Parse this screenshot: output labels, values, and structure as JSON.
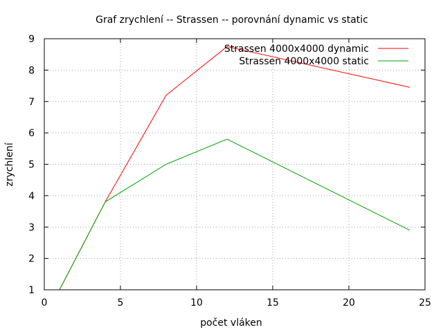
{
  "chart_data": {
    "type": "line",
    "title": "Graf zrychlení -- Strassen -- porovnání dynamic vs static",
    "xlabel": "počet vláken",
    "ylabel": "zrychlení",
    "xlim": [
      0,
      25
    ],
    "ylim": [
      1,
      9
    ],
    "xticks": [
      0,
      5,
      10,
      15,
      20,
      25
    ],
    "yticks": [
      1,
      2,
      3,
      4,
      5,
      6,
      7,
      8,
      9
    ],
    "grid": true,
    "legend_position": "top-right",
    "series": [
      {
        "name": "Strassen 4000x4000 dynamic",
        "color": "#ff0000",
        "x": [
          1,
          4,
          8,
          12,
          24
        ],
        "y": [
          1.0,
          3.8,
          7.2,
          8.75,
          7.45
        ]
      },
      {
        "name": "Strassen 4000x4000 static",
        "color": "#00a000",
        "x": [
          1,
          4,
          8,
          12,
          24
        ],
        "y": [
          1.0,
          3.8,
          5.0,
          5.8,
          2.9
        ]
      }
    ]
  }
}
